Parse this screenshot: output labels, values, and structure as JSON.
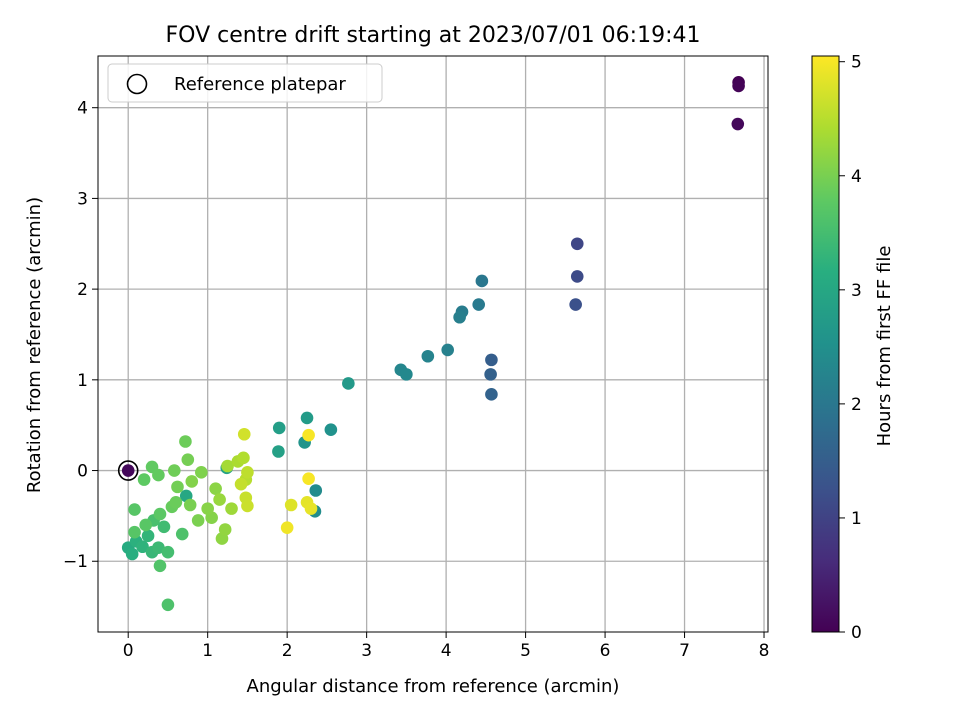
{
  "chart_data": {
    "type": "scatter",
    "title": "FOV centre drift starting at 2023/07/01 06:19:41",
    "xlabel": "Angular distance from reference (arcmin)",
    "ylabel": "Rotation from reference (arcmin)",
    "xlim": [
      -0.38,
      8.05
    ],
    "ylim": [
      -1.78,
      4.57
    ],
    "xticks": [
      0,
      1,
      2,
      3,
      4,
      5,
      6,
      7,
      8
    ],
    "yticks": [
      -1,
      0,
      1,
      2,
      3,
      4
    ],
    "grid": true,
    "legend": {
      "position": "upper-left",
      "entries": [
        "Reference platepar"
      ]
    },
    "reference_point": {
      "x": 0,
      "y": 0
    },
    "colorbar": {
      "label": "Hours from first FF file",
      "range": [
        0,
        5.05
      ],
      "ticks": [
        0,
        1,
        2,
        3,
        4,
        5
      ],
      "colormap": "viridis"
    },
    "points": [
      {
        "x": 7.68,
        "y": 4.28,
        "c": 0.0
      },
      {
        "x": 7.68,
        "y": 4.24,
        "c": 0.05
      },
      {
        "x": 7.67,
        "y": 3.82,
        "c": 0.1
      },
      {
        "x": 0.0,
        "y": 0.0,
        "c": 0.1
      },
      {
        "x": 5.65,
        "y": 2.5,
        "c": 1.05
      },
      {
        "x": 5.65,
        "y": 2.14,
        "c": 1.15
      },
      {
        "x": 5.63,
        "y": 1.83,
        "c": 1.25
      },
      {
        "x": 4.57,
        "y": 1.22,
        "c": 1.5
      },
      {
        "x": 4.56,
        "y": 1.06,
        "c": 1.55
      },
      {
        "x": 4.57,
        "y": 0.84,
        "c": 1.6
      },
      {
        "x": 4.45,
        "y": 2.09,
        "c": 2.0
      },
      {
        "x": 4.41,
        "y": 1.83,
        "c": 2.05
      },
      {
        "x": 4.2,
        "y": 1.75,
        "c": 2.1
      },
      {
        "x": 4.17,
        "y": 1.69,
        "c": 2.15
      },
      {
        "x": 4.02,
        "y": 1.33,
        "c": 2.2
      },
      {
        "x": 3.77,
        "y": 1.26,
        "c": 2.25
      },
      {
        "x": 3.43,
        "y": 1.11,
        "c": 2.3
      },
      {
        "x": 3.5,
        "y": 1.06,
        "c": 2.35
      },
      {
        "x": 2.36,
        "y": -0.22,
        "c": 2.4
      },
      {
        "x": 2.35,
        "y": -0.45,
        "c": 2.45
      },
      {
        "x": 2.55,
        "y": 0.45,
        "c": 2.55
      },
      {
        "x": 2.22,
        "y": 0.31,
        "c": 2.6
      },
      {
        "x": 2.77,
        "y": 0.96,
        "c": 2.7
      },
      {
        "x": 2.25,
        "y": 0.58,
        "c": 2.75
      },
      {
        "x": 1.9,
        "y": 0.47,
        "c": 2.8
      },
      {
        "x": 1.89,
        "y": 0.21,
        "c": 2.85
      },
      {
        "x": 1.24,
        "y": 0.03,
        "c": 2.9
      },
      {
        "x": 0.73,
        "y": -0.28,
        "c": 3.0
      },
      {
        "x": 0.0,
        "y": -0.85,
        "c": 3.1
      },
      {
        "x": 0.05,
        "y": -0.92,
        "c": 3.15
      },
      {
        "x": 0.1,
        "y": -0.78,
        "c": 3.2
      },
      {
        "x": 0.18,
        "y": -0.84,
        "c": 3.25
      },
      {
        "x": 0.25,
        "y": -0.72,
        "c": 3.3
      },
      {
        "x": 0.3,
        "y": -0.9,
        "c": 3.35
      },
      {
        "x": 0.38,
        "y": -0.85,
        "c": 3.4
      },
      {
        "x": 0.45,
        "y": -0.62,
        "c": 3.45
      },
      {
        "x": 0.5,
        "y": -0.9,
        "c": 3.5
      },
      {
        "x": 0.32,
        "y": -0.55,
        "c": 3.55
      },
      {
        "x": 0.68,
        "y": -0.7,
        "c": 3.6
      },
      {
        "x": 0.5,
        "y": -1.48,
        "c": 3.6
      },
      {
        "x": 0.4,
        "y": -1.05,
        "c": 3.65
      },
      {
        "x": 0.08,
        "y": -0.68,
        "c": 3.7
      },
      {
        "x": 0.08,
        "y": -0.43,
        "c": 3.7
      },
      {
        "x": 0.22,
        "y": -0.6,
        "c": 3.72
      },
      {
        "x": 0.4,
        "y": -0.48,
        "c": 3.75
      },
      {
        "x": 0.2,
        "y": -0.1,
        "c": 3.78
      },
      {
        "x": 0.3,
        "y": 0.04,
        "c": 3.8
      },
      {
        "x": 0.38,
        "y": -0.05,
        "c": 3.82
      },
      {
        "x": 0.55,
        "y": -0.4,
        "c": 3.85
      },
      {
        "x": 0.6,
        "y": -0.35,
        "c": 3.88
      },
      {
        "x": 0.72,
        "y": 0.32,
        "c": 3.9
      },
      {
        "x": 0.58,
        "y": 0.0,
        "c": 3.92
      },
      {
        "x": 0.62,
        "y": -0.18,
        "c": 3.95
      },
      {
        "x": 0.75,
        "y": 0.12,
        "c": 3.97
      },
      {
        "x": 0.78,
        "y": -0.38,
        "c": 4.0
      },
      {
        "x": 0.88,
        "y": -0.55,
        "c": 4.02
      },
      {
        "x": 0.92,
        "y": -0.02,
        "c": 4.05
      },
      {
        "x": 0.8,
        "y": -0.12,
        "c": 4.08
      },
      {
        "x": 1.05,
        "y": -0.52,
        "c": 4.1
      },
      {
        "x": 1.0,
        "y": -0.42,
        "c": 4.12
      },
      {
        "x": 1.1,
        "y": -0.2,
        "c": 4.15
      },
      {
        "x": 1.18,
        "y": -0.75,
        "c": 4.18
      },
      {
        "x": 1.22,
        "y": -0.65,
        "c": 4.2
      },
      {
        "x": 1.15,
        "y": -0.32,
        "c": 4.25
      },
      {
        "x": 1.3,
        "y": -0.42,
        "c": 4.3
      },
      {
        "x": 1.25,
        "y": 0.05,
        "c": 4.35
      },
      {
        "x": 1.38,
        "y": 0.1,
        "c": 4.4
      },
      {
        "x": 1.45,
        "y": 0.14,
        "c": 4.45
      },
      {
        "x": 1.48,
        "y": -0.1,
        "c": 4.5
      },
      {
        "x": 1.5,
        "y": -0.02,
        "c": 4.55
      },
      {
        "x": 1.42,
        "y": -0.15,
        "c": 4.6
      },
      {
        "x": 1.48,
        "y": -0.3,
        "c": 4.62
      },
      {
        "x": 1.5,
        "y": -0.39,
        "c": 4.65
      },
      {
        "x": 1.46,
        "y": 0.4,
        "c": 4.7
      },
      {
        "x": 2.05,
        "y": -0.38,
        "c": 4.8
      },
      {
        "x": 2.25,
        "y": -0.35,
        "c": 4.85
      },
      {
        "x": 2.3,
        "y": -0.42,
        "c": 4.88
      },
      {
        "x": 2.0,
        "y": -0.63,
        "c": 4.95
      },
      {
        "x": 2.27,
        "y": -0.09,
        "c": 5.0
      },
      {
        "x": 2.27,
        "y": 0.39,
        "c": 5.0
      }
    ]
  }
}
